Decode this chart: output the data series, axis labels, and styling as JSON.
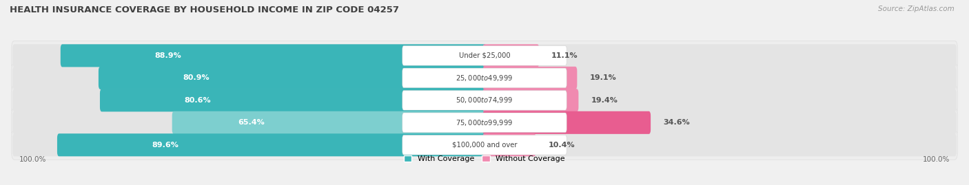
{
  "title": "HEALTH INSURANCE COVERAGE BY HOUSEHOLD INCOME IN ZIP CODE 04257",
  "source": "Source: ZipAtlas.com",
  "categories": [
    "Under $25,000",
    "$25,000 to $49,999",
    "$50,000 to $74,999",
    "$75,000 to $99,999",
    "$100,000 and over"
  ],
  "with_coverage": [
    88.9,
    80.9,
    80.6,
    65.4,
    89.6
  ],
  "without_coverage": [
    11.1,
    19.1,
    19.4,
    34.6,
    10.4
  ],
  "color_with": [
    "#3ab5b8",
    "#3ab5b8",
    "#3ab5b8",
    "#7dcfcf",
    "#3ab5b8"
  ],
  "color_without": [
    "#f08ab0",
    "#f08ab0",
    "#f08ab0",
    "#e85d90",
    "#f08ab0"
  ],
  "bg_row": "#f5f5f5",
  "bg_track": "#e8e8e8",
  "bg_color": "#f0f0f0",
  "figsize": [
    14.06,
    2.69
  ],
  "dpi": 100
}
